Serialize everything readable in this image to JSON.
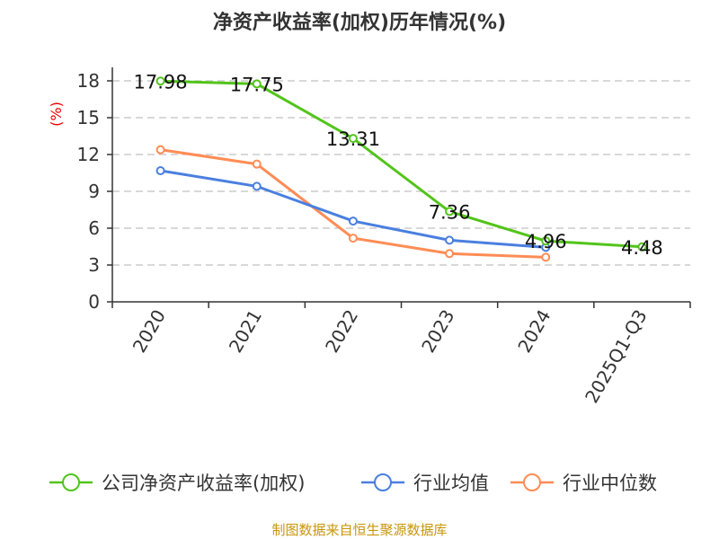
{
  "chart_data": {
    "type": "line",
    "title": "净资产收益率(加权)历年情况(%)",
    "ylabel": "(%)",
    "categories": [
      "2020",
      "2021",
      "2022",
      "2023",
      "2024",
      "2025Q1-Q3"
    ],
    "ylim": [
      0,
      18
    ],
    "yticks": [
      0,
      3,
      6,
      9,
      12,
      15,
      18
    ],
    "grid": true,
    "legend_position": "bottom",
    "series": [
      {
        "name": "公司净资产收益率(加权)",
        "color": "#52c41a",
        "values": [
          17.98,
          17.75,
          13.31,
          7.36,
          4.96,
          4.48
        ],
        "labels": [
          "17.98",
          "17.75",
          "13.31",
          "7.36",
          "4.96",
          "4.48"
        ]
      },
      {
        "name": "行业均值",
        "color": "#4a7fe0",
        "values": [
          10.68,
          9.41,
          6.58,
          5.02,
          4.44,
          null
        ]
      },
      {
        "name": "行业中位数",
        "color": "#ff8c55",
        "values": [
          12.39,
          11.22,
          5.19,
          3.93,
          3.63,
          null
        ]
      }
    ]
  },
  "source": "制图数据来自恒生聚源数据库"
}
